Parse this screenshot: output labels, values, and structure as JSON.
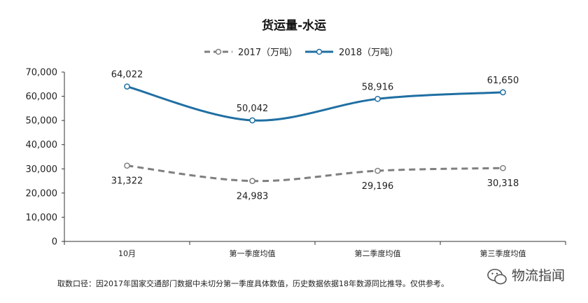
{
  "chart_data": {
    "type": "line",
    "title": "货运量-水运",
    "categories": [
      "10月",
      "第一季度均值",
      "第二季度均值",
      "第三季度均值"
    ],
    "series": [
      {
        "name": "2017（万吨）",
        "values": [
          31322,
          24983,
          29196,
          30318
        ],
        "labels": [
          "31,322",
          "24,983",
          "29,196",
          "30,318"
        ],
        "color": "#7f7f7f",
        "dashed": true
      },
      {
        "name": "2018（万吨）",
        "values": [
          64022,
          50042,
          58916,
          61650
        ],
        "labels": [
          "64,022",
          "50,042",
          "58,916",
          "61,650"
        ],
        "color": "#1f6fa3",
        "dashed": false
      }
    ],
    "yticks": [
      "0",
      "10,000",
      "20,000",
      "30,000",
      "40,000",
      "50,000",
      "60,000",
      "70,000"
    ],
    "ylim": [
      0,
      70000
    ],
    "grid": false,
    "legend": "top-center"
  },
  "footnote": "取数口径：因2017年国家交通部门数据中未切分第一季度具体数值，历史数据依据18年数源同比推导。仅供参考。",
  "watermark": {
    "text": "物流指闻",
    "icon": "wechat-icon"
  }
}
